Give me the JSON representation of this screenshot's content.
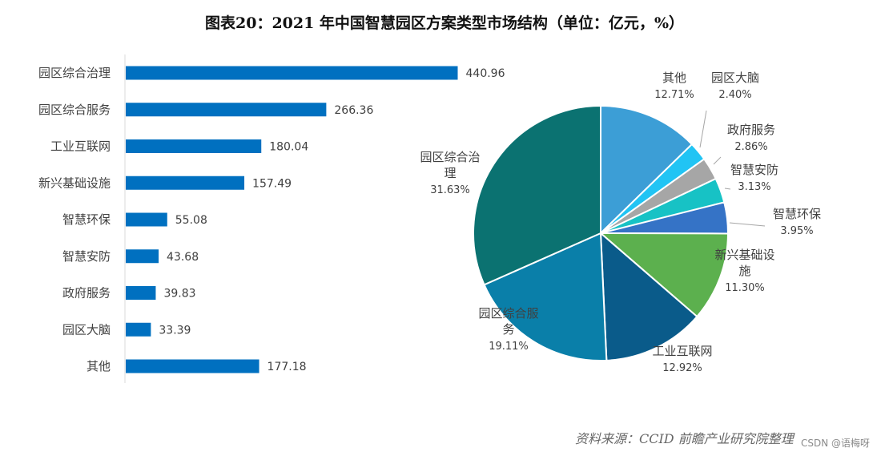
{
  "title": "图表20：2021 年中国智慧园区方案类型市场结构（单位：亿元，%）",
  "source": "资料来源：CCID 前瞻产业研究院整理",
  "watermark": "CSDN @语梅呀",
  "colors": {
    "bar": "#0070c0",
    "text": "#404040",
    "label": "#404040"
  },
  "chart_data": [
    {
      "type": "bar",
      "orientation": "horizontal",
      "categories": [
        "园区综合治理",
        "园区综合服务",
        "工业互联网",
        "新兴基础设施",
        "智慧环保",
        "智慧安防",
        "政府服务",
        "园区大脑",
        "其他"
      ],
      "values": [
        440.96,
        266.36,
        180.04,
        157.49,
        55.08,
        43.68,
        39.83,
        33.39,
        177.18
      ],
      "value_labels": [
        "440.96",
        "266.36",
        "180.04",
        "157.49",
        "55.08",
        "43.68",
        "39.83",
        "33.39",
        "177.18"
      ],
      "xlim": [
        0,
        500
      ],
      "grid": false,
      "legend": "none"
    },
    {
      "type": "pie",
      "start_angle_deg": 0,
      "direction": "clockwise",
      "slices": [
        {
          "name": "其他",
          "name_lines": [
            "其他"
          ],
          "value": 12.71,
          "label": "12.71%",
          "color": "#3c9ed6"
        },
        {
          "name": "园区大脑",
          "name_lines": [
            "园区大脑"
          ],
          "value": 2.4,
          "label": "2.40%",
          "color": "#21c4f4"
        },
        {
          "name": "政府服务",
          "name_lines": [
            "政府服务"
          ],
          "value": 2.86,
          "label": "2.86%",
          "color": "#a6a6a6"
        },
        {
          "name": "智慧安防",
          "name_lines": [
            "智慧安防"
          ],
          "value": 3.13,
          "label": "3.13%",
          "color": "#17c2c5"
        },
        {
          "name": "智慧环保",
          "name_lines": [
            "智慧环保"
          ],
          "value": 3.95,
          "label": "3.95%",
          "color": "#3573c6"
        },
        {
          "name": "新兴基础设施",
          "name_lines": [
            "新兴基础设",
            "施"
          ],
          "value": 11.3,
          "label": "11.30%",
          "color": "#5cb04e"
        },
        {
          "name": "工业互联网",
          "name_lines": [
            "工业互联网"
          ],
          "value": 12.92,
          "label": "12.92%",
          "color": "#0a5b8a"
        },
        {
          "name": "园区综合服务",
          "name_lines": [
            "园区综合服",
            "务"
          ],
          "value": 19.11,
          "label": "19.11%",
          "color": "#0a7fa9"
        },
        {
          "name": "园区综合治理",
          "name_lines": [
            "园区综合治",
            "理"
          ],
          "value": 31.63,
          "label": "31.63%",
          "color": "#0b7271"
        }
      ],
      "legend": "none"
    }
  ]
}
